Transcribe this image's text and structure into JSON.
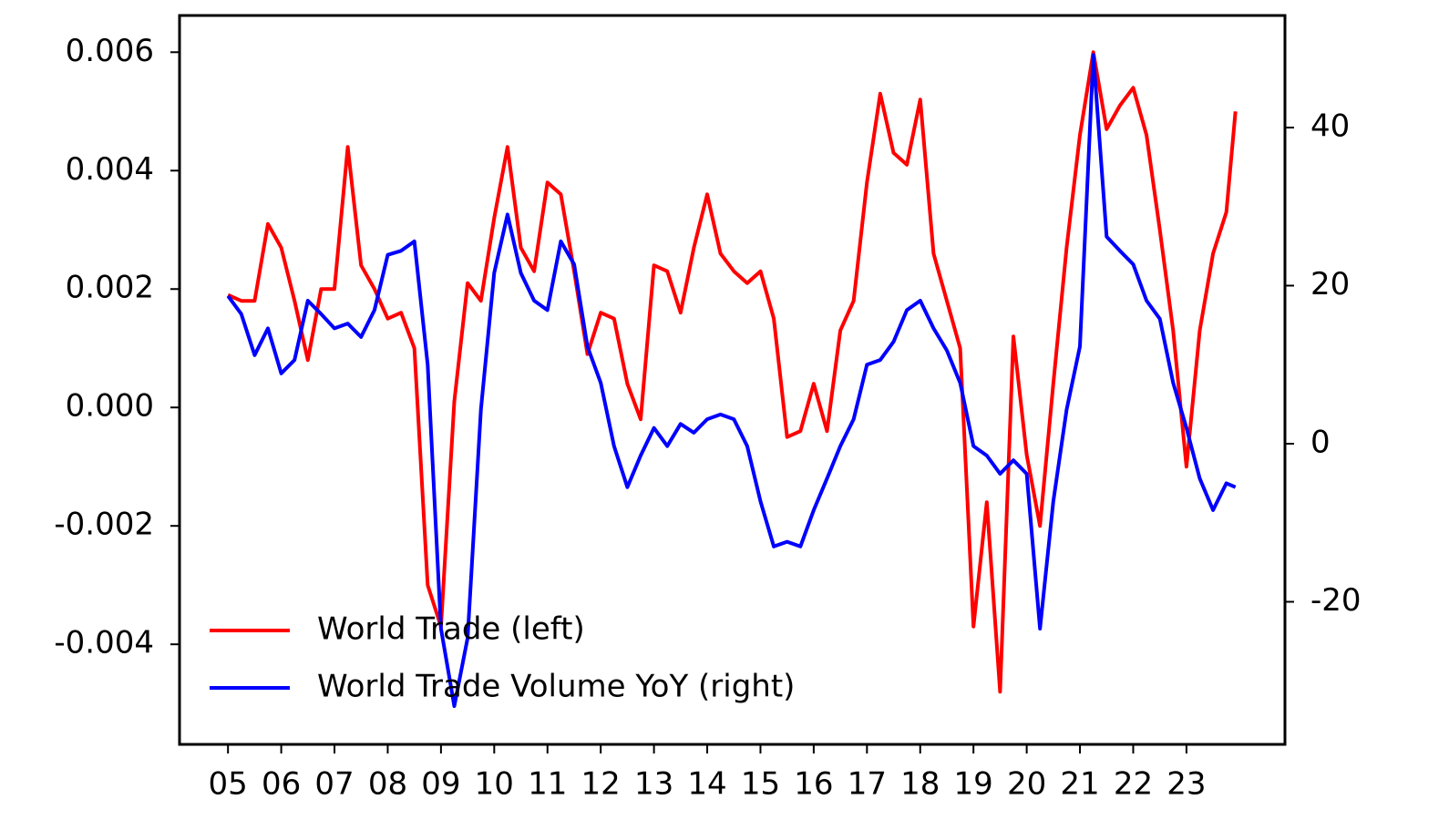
{
  "chart_data": {
    "type": "line",
    "x": [
      2005.0,
      2005.25,
      2005.5,
      2005.75,
      2006.0,
      2006.25,
      2006.5,
      2006.75,
      2007.0,
      2007.25,
      2007.5,
      2007.75,
      2008.0,
      2008.25,
      2008.5,
      2008.75,
      2009.0,
      2009.25,
      2009.5,
      2009.75,
      2010.0,
      2010.25,
      2010.5,
      2010.75,
      2011.0,
      2011.25,
      2011.5,
      2011.75,
      2012.0,
      2012.25,
      2012.5,
      2012.75,
      2013.0,
      2013.25,
      2013.5,
      2013.75,
      2014.0,
      2014.25,
      2014.5,
      2014.75,
      2015.0,
      2015.25,
      2015.5,
      2015.75,
      2016.0,
      2016.25,
      2016.5,
      2016.75,
      2017.0,
      2017.25,
      2017.5,
      2017.75,
      2018.0,
      2018.25,
      2018.5,
      2018.75,
      2019.0,
      2019.25,
      2019.5,
      2019.75,
      2020.0,
      2020.25,
      2020.5,
      2020.75,
      2021.0,
      2021.25,
      2021.5,
      2021.75,
      2022.0,
      2022.25,
      2022.5,
      2022.75,
      2023.0,
      2023.25,
      2023.5,
      2023.75,
      2023.92
    ],
    "series": [
      {
        "name": "World Trade (left)",
        "color": "#ff0000",
        "values": [
          0.0019,
          0.0018,
          0.0018,
          0.0031,
          0.0027,
          0.0018,
          0.0008,
          0.002,
          0.002,
          0.0044,
          0.0024,
          0.002,
          0.0015,
          0.0016,
          0.001,
          -0.003,
          -0.0037,
          0.0001,
          0.0021,
          0.0018,
          0.0032,
          0.0044,
          0.0027,
          0.0023,
          0.0038,
          0.0036,
          0.0023,
          0.0009,
          0.0016,
          0.0015,
          0.0004,
          -0.0002,
          0.0024,
          0.0023,
          0.0016,
          0.0027,
          0.0036,
          0.0026,
          0.0023,
          0.0021,
          0.0023,
          0.0015,
          -0.0005,
          -0.0004,
          0.0004,
          -0.0004,
          0.0013,
          0.0018,
          0.0038,
          0.0053,
          0.0043,
          0.0041,
          0.0052,
          0.0026,
          0.0018,
          0.001,
          -0.0037,
          -0.0016,
          -0.0048,
          0.0012,
          -0.0008,
          -0.002,
          0.0004,
          0.0027,
          0.0046,
          0.006,
          0.0047,
          0.0051,
          0.0054,
          0.0046,
          0.003,
          0.0013,
          -0.001,
          0.0013,
          0.0026,
          0.0033,
          0.005
        ]
      },
      {
        "name": "World Trade Volume YoY (right)",
        "color": "#0000ff",
        "axis": "y2",
        "values": [
          18.7,
          16.4,
          11.2,
          14.6,
          8.9,
          10.6,
          18.1,
          16.4,
          14.6,
          15.2,
          13.5,
          16.9,
          23.9,
          24.4,
          25.6,
          10.0,
          -23.4,
          -33.2,
          -24.6,
          4.3,
          21.6,
          29.0,
          21.6,
          18.1,
          16.9,
          25.6,
          22.7,
          12.3,
          7.7,
          -0.3,
          -5.5,
          -1.5,
          2.0,
          -0.3,
          2.5,
          1.4,
          3.1,
          3.7,
          3.1,
          -0.3,
          -7.3,
          -13.0,
          -12.4,
          -13.0,
          -8.4,
          -4.4,
          -0.3,
          3.1,
          10.0,
          10.6,
          12.9,
          16.9,
          18.1,
          14.6,
          11.8,
          7.7,
          -0.3,
          -1.5,
          -3.8,
          -2.1,
          -3.8,
          -23.4,
          -7.3,
          4.3,
          12.3,
          49.2,
          26.2,
          24.4,
          22.7,
          18.1,
          15.8,
          7.7,
          2.0,
          -4.4,
          -8.4,
          -5.0,
          -5.5
        ]
      }
    ],
    "xlim": [
      2004.09,
      2024.85
    ],
    "xticks": [
      {
        "value": 2005,
        "label": "05"
      },
      {
        "value": 2006,
        "label": "06"
      },
      {
        "value": 2007,
        "label": "07"
      },
      {
        "value": 2008,
        "label": "08"
      },
      {
        "value": 2009,
        "label": "09"
      },
      {
        "value": 2010,
        "label": "10"
      },
      {
        "value": 2011,
        "label": "11"
      },
      {
        "value": 2012,
        "label": "12"
      },
      {
        "value": 2013,
        "label": "13"
      },
      {
        "value": 2014,
        "label": "14"
      },
      {
        "value": 2015,
        "label": "15"
      },
      {
        "value": 2016,
        "label": "16"
      },
      {
        "value": 2017,
        "label": "17"
      },
      {
        "value": 2018,
        "label": "18"
      },
      {
        "value": 2019,
        "label": "19"
      },
      {
        "value": 2020,
        "label": "20"
      },
      {
        "value": 2021,
        "label": "21"
      },
      {
        "value": 2022,
        "label": "22"
      },
      {
        "value": 2023,
        "label": "23"
      }
    ],
    "ylim": [
      -0.00569,
      0.00662
    ],
    "yticks": [
      {
        "value": -0.004,
        "label": "-0.004"
      },
      {
        "value": -0.002,
        "label": "-0.002"
      },
      {
        "value": 0,
        "label": "0.000"
      },
      {
        "value": 0.002,
        "label": "0.002"
      },
      {
        "value": 0.004,
        "label": "0.004"
      },
      {
        "value": 0.006,
        "label": "0.006"
      }
    ],
    "y2lim": [
      -38.04,
      54.18
    ],
    "y2ticks": [
      -20,
      0,
      20,
      40
    ],
    "legend": "lower left"
  }
}
